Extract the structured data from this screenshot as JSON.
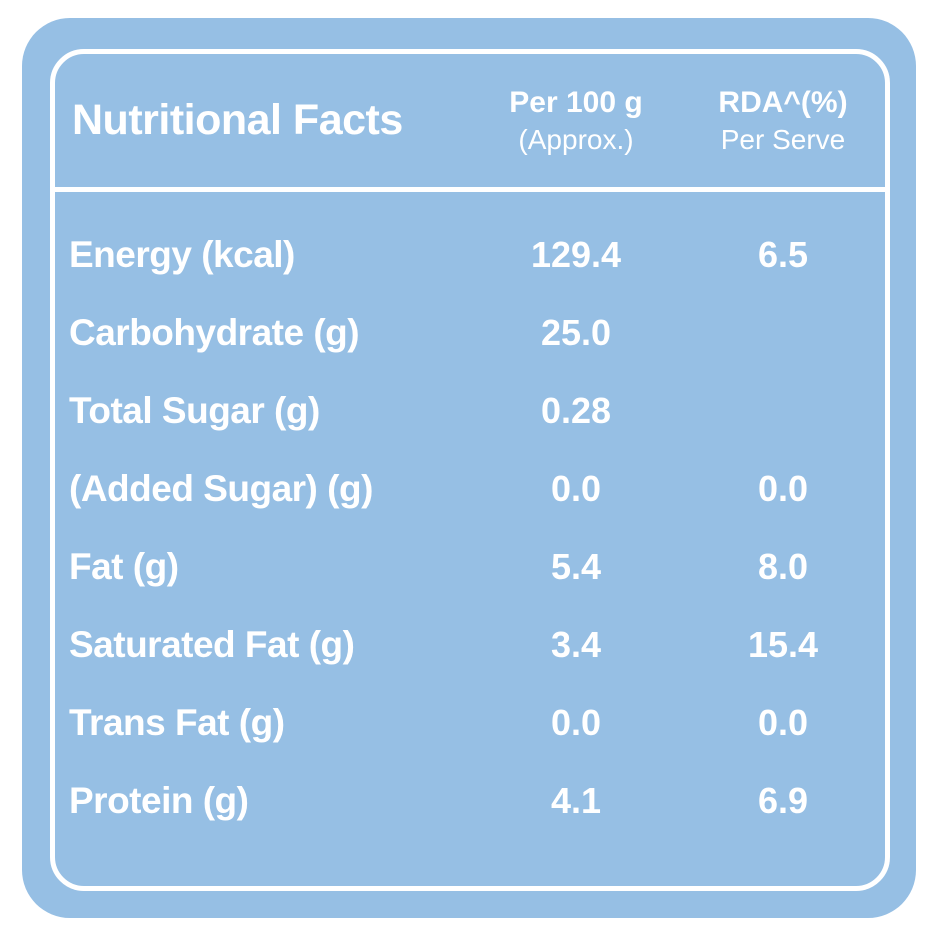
{
  "card": {
    "header": {
      "title": "Nutritional Facts",
      "col_per100": {
        "line1": "Per 100 g",
        "line2": "(Approx.)"
      },
      "col_rda": {
        "line1": "RDA^(%)",
        "line2": "Per Serve"
      }
    },
    "rows": [
      {
        "label": "Energy (kcal)",
        "per100": "129.4",
        "rda": "6.5"
      },
      {
        "label": "Carbohydrate (g)",
        "per100": "25.0",
        "rda": ""
      },
      {
        "label": "Total Sugar (g)",
        "per100": "0.28",
        "rda": ""
      },
      {
        "label": "(Added Sugar) (g)",
        "per100": "0.0",
        "rda": "0.0"
      },
      {
        "label": "Fat (g)",
        "per100": "5.4",
        "rda": "8.0"
      },
      {
        "label": "Saturated Fat (g)",
        "per100": "3.4",
        "rda": "15.4"
      },
      {
        "label": "Trans Fat (g)",
        "per100": "0.0",
        "rda": "0.0"
      },
      {
        "label": "Protein (g)",
        "per100": "4.1",
        "rda": "6.9"
      }
    ],
    "colors": {
      "card_bg": "#96bfe4",
      "border": "#ffffff",
      "text": "#ffffff",
      "page_bg": "#ffffff"
    }
  }
}
